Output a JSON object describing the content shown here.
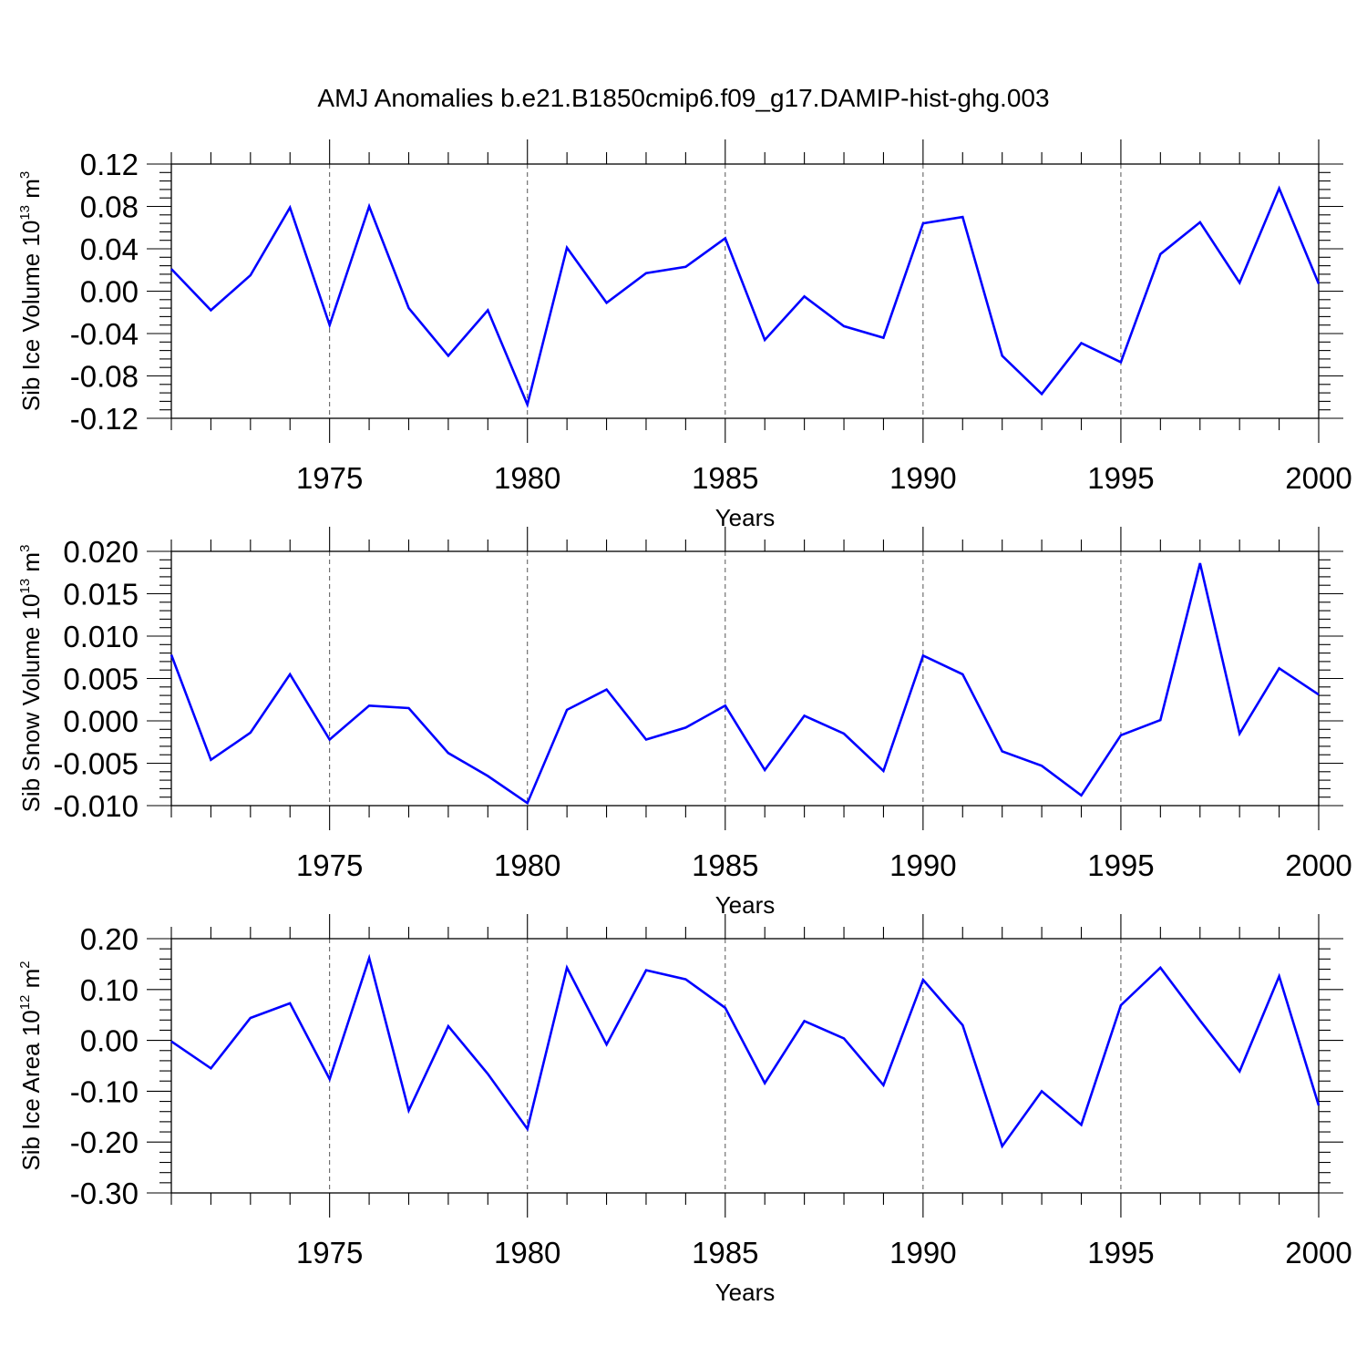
{
  "title": "AMJ Anomalies b.e21.B1850cmip6.f09_g17.DAMIP-hist-ghg.003",
  "colors": {
    "line": "#0000ff",
    "axis": "#000000",
    "grid": "#555555"
  },
  "chart_data": [
    {
      "type": "line",
      "ylabel": "Sib Ice Volume 10",
      "ylabel_sup": "13",
      "ylabel_unit": " m",
      "ylabel_unit_sup": "3",
      "xlabel": "Years",
      "xlim": [
        1971,
        2000
      ],
      "ylim": [
        -0.12,
        0.12
      ],
      "xticks": [
        1975,
        1980,
        1985,
        1990,
        1995,
        2000
      ],
      "ytick_values": [
        -0.12,
        -0.08,
        -0.04,
        0.0,
        0.04,
        0.08,
        0.12
      ],
      "ytick_labels": [
        "-0.12",
        "-0.08",
        "-0.04",
        "0.00",
        "0.04",
        "0.08",
        "0.12"
      ],
      "grid": "vertical dashed at major x ticks",
      "series": [
        {
          "x": [
            1971,
            1972,
            1973,
            1974,
            1975,
            1976,
            1977,
            1978,
            1979,
            1980,
            1981,
            1982,
            1983,
            1984,
            1985,
            1986,
            1987,
            1988,
            1989,
            1990,
            1991,
            1992,
            1993,
            1994,
            1995,
            1996,
            1997,
            1998,
            1999,
            2000
          ],
          "values": [
            0.021,
            -0.018,
            0.015,
            0.079,
            -0.032,
            0.08,
            -0.016,
            -0.061,
            -0.018,
            -0.107,
            0.041,
            -0.011,
            0.017,
            0.023,
            0.05,
            -0.046,
            -0.005,
            -0.033,
            -0.044,
            0.064,
            0.07,
            -0.061,
            -0.097,
            -0.049,
            -0.067,
            0.035,
            0.065,
            0.008,
            0.097,
            0.007
          ]
        }
      ]
    },
    {
      "type": "line",
      "ylabel": "Sib Snow Volume 10",
      "ylabel_sup": "13",
      "ylabel_unit": " m",
      "ylabel_unit_sup": "3",
      "xlabel": "Years",
      "xlim": [
        1971,
        2000
      ],
      "ylim": [
        -0.01,
        0.02
      ],
      "xticks": [
        1975,
        1980,
        1985,
        1990,
        1995,
        2000
      ],
      "ytick_values": [
        -0.01,
        -0.005,
        0.0,
        0.005,
        0.01,
        0.015,
        0.02
      ],
      "ytick_labels": [
        "-0.010",
        "-0.005",
        "0.000",
        "0.005",
        "0.010",
        "0.015",
        "0.020"
      ],
      "grid": "vertical dashed at major x ticks",
      "series": [
        {
          "x": [
            1971,
            1972,
            1973,
            1974,
            1975,
            1976,
            1977,
            1978,
            1979,
            1980,
            1981,
            1982,
            1983,
            1984,
            1985,
            1986,
            1987,
            1988,
            1989,
            1990,
            1991,
            1992,
            1993,
            1994,
            1995,
            1996,
            1997,
            1998,
            1999,
            2000
          ],
          "values": [
            0.0078,
            -0.0046,
            -0.0014,
            0.0055,
            -0.0022,
            0.0018,
            0.0015,
            -0.0038,
            -0.0065,
            -0.0097,
            0.0013,
            0.0037,
            -0.0022,
            -0.0008,
            0.0018,
            -0.0058,
            0.0006,
            -0.0015,
            -0.0059,
            0.0077,
            0.0055,
            -0.0036,
            -0.0053,
            -0.0088,
            -0.0017,
            0.0001,
            0.0186,
            -0.0015,
            0.0062,
            0.0031
          ]
        }
      ]
    },
    {
      "type": "line",
      "ylabel": "Sib Ice Area 10",
      "ylabel_sup": "12",
      "ylabel_unit": " m",
      "ylabel_unit_sup": "2",
      "xlabel": "Years",
      "xlim": [
        1971,
        2000
      ],
      "ylim": [
        -0.3,
        0.2
      ],
      "xticks": [
        1975,
        1980,
        1985,
        1990,
        1995,
        2000
      ],
      "ytick_values": [
        -0.3,
        -0.2,
        -0.1,
        0.0,
        0.1,
        0.2
      ],
      "ytick_labels": [
        "-0.30",
        "-0.20",
        "-0.10",
        "0.00",
        "0.10",
        "0.20"
      ],
      "grid": "vertical dashed at major x ticks",
      "series": [
        {
          "x": [
            1971,
            1972,
            1973,
            1974,
            1975,
            1976,
            1977,
            1978,
            1979,
            1980,
            1981,
            1982,
            1983,
            1984,
            1985,
            1986,
            1987,
            1988,
            1989,
            1990,
            1991,
            1992,
            1993,
            1994,
            1995,
            1996,
            1997,
            1998,
            1999,
            2000
          ],
          "values": [
            -0.002,
            -0.055,
            0.044,
            0.073,
            -0.076,
            0.162,
            -0.138,
            0.028,
            -0.066,
            -0.174,
            0.143,
            -0.008,
            0.138,
            0.12,
            0.064,
            -0.084,
            0.038,
            0.004,
            -0.088,
            0.119,
            0.03,
            -0.208,
            -0.1,
            -0.166,
            0.069,
            0.143,
            0.039,
            -0.061,
            0.126,
            -0.128
          ]
        }
      ]
    }
  ]
}
